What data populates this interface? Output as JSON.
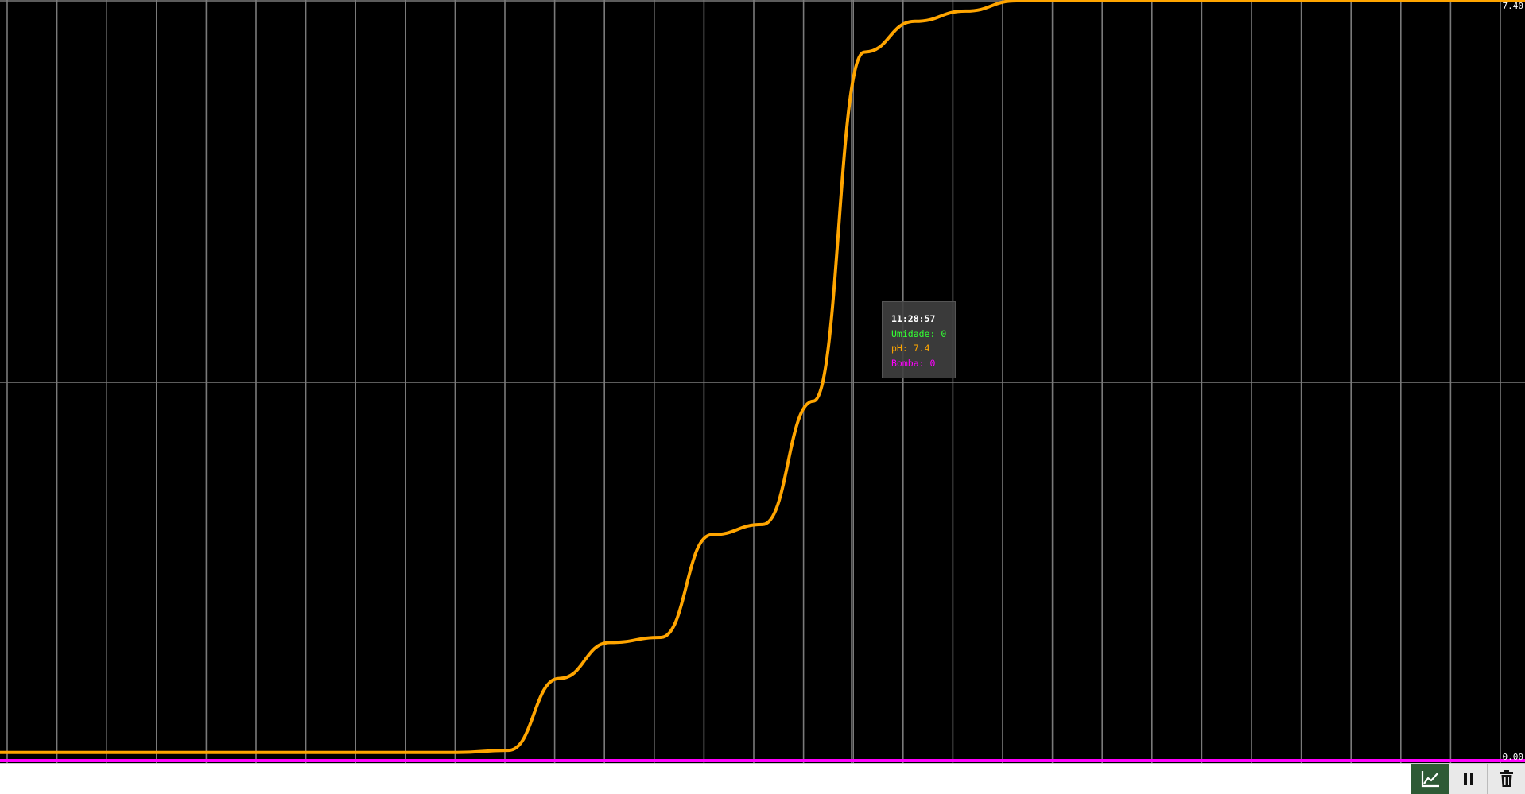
{
  "chart_data": {
    "type": "line",
    "title": "",
    "xlabel": "",
    "ylabel": "",
    "ylim": [
      0,
      7.4
    ],
    "y_tick_labels": {
      "max": "7.40",
      "min": "0.00"
    },
    "grid": true,
    "background": "#000000",
    "gridline_color": "#7a7a7a",
    "series": [
      {
        "name": "Umidade",
        "color": "#33ff33",
        "values": [
          0,
          0,
          0,
          0,
          0,
          0,
          0,
          0,
          0,
          0,
          0,
          0,
          0,
          0,
          0,
          0,
          0,
          0,
          0,
          0,
          0,
          0,
          0,
          0,
          0,
          0,
          0,
          0,
          0,
          0,
          0
        ]
      },
      {
        "name": "pH",
        "color": "#ffa500",
        "values": [
          0.08,
          0.08,
          0.08,
          0.08,
          0.08,
          0.08,
          0.08,
          0.08,
          0.08,
          0.08,
          0.1,
          0.8,
          1.15,
          1.2,
          2.2,
          2.3,
          3.5,
          6.9,
          7.2,
          7.3,
          7.4,
          7.4,
          7.4,
          7.4,
          7.4,
          7.4,
          7.4,
          7.4,
          7.4,
          7.4,
          7.4
        ]
      },
      {
        "name": "Bomba",
        "color": "#ff00ff",
        "values": [
          0,
          0,
          0,
          0,
          0,
          0,
          0,
          0,
          0,
          0,
          0,
          0,
          0,
          0,
          0,
          0,
          0,
          0,
          0,
          0,
          0,
          0,
          0,
          0,
          0,
          0,
          0,
          0,
          0,
          0,
          0
        ]
      }
    ]
  },
  "tooltip": {
    "time": "11:28:57",
    "rows": [
      {
        "name": "Umidade",
        "sep": ": ",
        "value": "0"
      },
      {
        "name": "pH",
        "sep": ": ",
        "value": "7.4"
      },
      {
        "name": "Bomba",
        "sep": ": ",
        "value": "0"
      }
    ]
  },
  "toolbar": {
    "buttons": [
      {
        "icon": "chart-line-icon",
        "active": true
      },
      {
        "icon": "pause-icon",
        "active": false
      },
      {
        "icon": "trash-icon",
        "active": false
      }
    ]
  }
}
